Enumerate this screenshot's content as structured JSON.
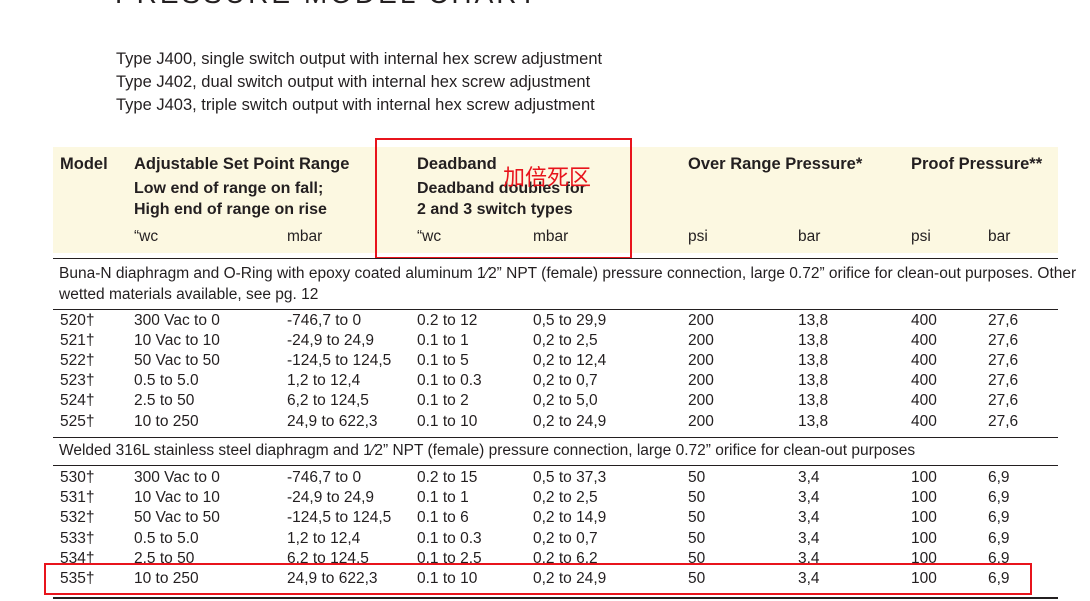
{
  "title": "PRESSURE MODEL CHART",
  "types": [
    "Type J400, single switch output with internal hex screw adjustment",
    "Type J402, dual switch output with internal hex screw adjustment",
    "Type J403, triple switch output with internal hex screw adjustment"
  ],
  "header": {
    "model": "Model",
    "setpoint": "Adjustable Set Point Range",
    "setpoint_sub1": "Low end of range on fall;",
    "setpoint_sub2": "High end of range on rise",
    "deadband": "Deadband",
    "deadband_sub1": "Deadband doubles for",
    "deadband_sub2": "2 and 3 switch types",
    "over_range": "Over Range Pressure*",
    "proof": "Proof Pressure**",
    "units": [
      "“wc",
      "mbar",
      "“wc",
      "mbar",
      "psi",
      "bar",
      "psi",
      "bar"
    ]
  },
  "annotation": "加倍死区",
  "sections": [
    {
      "text_line1": "Buna-N diaphragm and O-Ring with epoxy coated aluminum 1⁄2” NPT (female) pressure connection, large 0.72” orifice for clean-out purposes.  Other",
      "text_line2": "wetted materials available, see pg. 12",
      "rows": [
        [
          "520†",
          "300 Vac to 0",
          "-746,7 to 0",
          "0.2 to 12",
          "0,5 to 29,9",
          "200",
          "13,8",
          "400",
          "27,6"
        ],
        [
          "521†",
          "10 Vac to 10",
          "-24,9 to 24,9",
          "0.1 to 1",
          "0,2 to 2,5",
          "200",
          "13,8",
          "400",
          "27,6"
        ],
        [
          "522†",
          "50 Vac to 50",
          "-124,5 to 124,5",
          "0.1 to 5",
          "0,2 to 12,4",
          "200",
          "13,8",
          "400",
          "27,6"
        ],
        [
          "523†",
          "0.5 to 5.0",
          "1,2 to 12,4",
          "0.1 to 0.3",
          "0,2 to 0,7",
          "200",
          "13,8",
          "400",
          "27,6"
        ],
        [
          "524†",
          "2.5 to 50",
          "6,2 to 124,5",
          "0.1 to 2",
          "0,2 to 5,0",
          "200",
          "13,8",
          "400",
          "27,6"
        ],
        [
          "525†",
          "10 to 250",
          "24,9 to 622,3",
          "0.1 to 10",
          "0,2 to 24,9",
          "200",
          "13,8",
          "400",
          "27,6"
        ]
      ]
    },
    {
      "text_line1": "Welded 316L stainless steel diaphragm and 1⁄2” NPT (female) pressure connection, large 0.72” orifice for clean-out purposes",
      "rows": [
        [
          "530†",
          "300 Vac to 0",
          "-746,7 to 0",
          "0.2 to 15",
          "0,5 to 37,3",
          "50",
          "3,4",
          "100",
          "6,9"
        ],
        [
          "531†",
          "10 Vac to 10",
          "-24,9 to 24,9",
          "0.1 to 1",
          "0,2 to 2,5",
          "50",
          "3,4",
          "100",
          "6,9"
        ],
        [
          "532†",
          "50  Vac to 50",
          "-124,5 to 124,5",
          "0.1 to 6",
          "0,2 to 14,9",
          "50",
          "3,4",
          "100",
          "6,9"
        ],
        [
          "533†",
          "0.5 to 5.0",
          "1,2 to 12,4",
          "0.1 to 0.3",
          "0,2 to 0,7",
          "50",
          "3,4",
          "100",
          "6,9"
        ],
        [
          "534†",
          "2.5 to 50",
          "6,2  to 124,5",
          "0.1 to 2.5",
          "0,2 to 6,2",
          "50",
          "3,4",
          "100",
          "6,9"
        ],
        [
          "535†",
          "10 to 250",
          "24,9 to 622,3",
          "0.1 to 10",
          "0,2 to 24,9",
          "50",
          "3,4",
          "100",
          "6,9"
        ]
      ]
    }
  ],
  "colors": {
    "header_bg": "#fcf8e1",
    "highlight": "#e8141c",
    "text": "#231f20"
  }
}
